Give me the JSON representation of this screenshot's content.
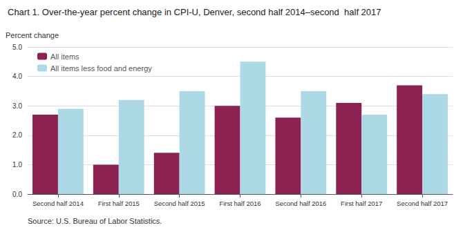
{
  "chart_data": {
    "type": "bar",
    "title": "Chart 1. Over-the-year percent change in CPI-U, Denver, second half 2014–second  half 2017",
    "ylabel": "Percent change",
    "source": "Source: U.S. Bureau of Labor Statistics.",
    "categories": [
      "Second half 2014",
      "First half 2015",
      "Second half 2015",
      "First half 2016",
      "Second half 2016",
      "First half 2017",
      "Second half 2017"
    ],
    "series": [
      {
        "name": "All items",
        "color": "#8B2252",
        "values": [
          2.7,
          1.0,
          1.4,
          3.0,
          2.6,
          3.1,
          3.7
        ]
      },
      {
        "name": "All items less food and energy",
        "color": "#ADD8E6",
        "values": [
          2.9,
          3.2,
          3.5,
          4.5,
          3.5,
          2.7,
          3.4
        ]
      }
    ],
    "ylim": [
      0,
      5.0
    ],
    "yticks": [
      {
        "value": 0.0,
        "label": "0.0"
      },
      {
        "value": 1.0,
        "label": "1.0"
      },
      {
        "value": 2.0,
        "label": "2.0"
      },
      {
        "value": 3.0,
        "label": "3.0"
      },
      {
        "value": 4.0,
        "label": "4.0"
      },
      {
        "value": 5.0,
        "label": "5.0"
      }
    ],
    "grid": true,
    "legend": "upper left"
  }
}
